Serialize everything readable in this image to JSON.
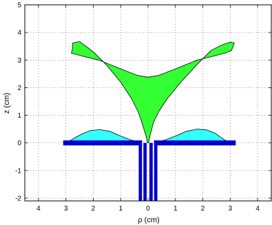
{
  "chart_data": {
    "type": "area",
    "title": "",
    "xlabel": "ρ (cm)",
    "ylabel": "z (cm)",
    "xlim": [
      -4.5,
      4.5
    ],
    "ylim": [
      -2.1,
      5
    ],
    "grid": true,
    "x_tick_values": [
      -4,
      -3,
      -2,
      -1,
      0,
      1,
      2,
      3,
      4
    ],
    "x_tick_labels": [
      "4",
      "3",
      "2",
      "1",
      "0",
      "1",
      "2",
      "3",
      "4"
    ],
    "y_tick_values": [
      -2,
      -1,
      0,
      1,
      2,
      3,
      4,
      5
    ],
    "y_tick_labels": [
      "-2",
      "-1",
      "0",
      "1",
      "2",
      "3",
      "4",
      "5"
    ],
    "colors": {
      "plume": "#33ff33",
      "pool": "#33ffff",
      "nozzle": "#0000cc",
      "outline": "#000000"
    },
    "shapes": [
      {
        "name": "plume",
        "points": [
          [
            0.02,
            0.0
          ],
          [
            0.08,
            0.3
          ],
          [
            0.2,
            0.75
          ],
          [
            0.4,
            1.15
          ],
          [
            0.7,
            1.6
          ],
          [
            1.2,
            2.2
          ],
          [
            1.8,
            2.85
          ],
          [
            2.3,
            3.35
          ],
          [
            2.7,
            3.55
          ],
          [
            3.0,
            3.65
          ],
          [
            3.15,
            3.62
          ],
          [
            3.05,
            3.35
          ],
          [
            2.8,
            3.25
          ],
          [
            2.3,
            3.12
          ],
          [
            1.8,
            3.0
          ],
          [
            1.3,
            2.8
          ],
          [
            0.8,
            2.6
          ],
          [
            0.4,
            2.45
          ],
          [
            0.0,
            2.38
          ],
          [
            -0.4,
            2.45
          ],
          [
            -0.8,
            2.6
          ],
          [
            -1.3,
            2.8
          ],
          [
            -1.8,
            3.0
          ],
          [
            -2.3,
            3.12
          ],
          [
            -2.8,
            3.25
          ],
          [
            -2.75,
            3.45
          ],
          [
            -2.75,
            3.62
          ],
          [
            -2.5,
            3.67
          ],
          [
            -2.0,
            3.3
          ],
          [
            -1.5,
            2.8
          ],
          [
            -1.0,
            2.2
          ],
          [
            -0.6,
            1.6
          ],
          [
            -0.35,
            1.1
          ],
          [
            -0.18,
            0.6
          ],
          [
            -0.06,
            0.2
          ],
          [
            -0.02,
            0.0
          ]
        ]
      },
      {
        "name": "pool-right",
        "points": [
          [
            0.3,
            0.03
          ],
          [
            0.6,
            0.1
          ],
          [
            1.0,
            0.25
          ],
          [
            1.4,
            0.42
          ],
          [
            1.8,
            0.5
          ],
          [
            2.15,
            0.47
          ],
          [
            2.45,
            0.35
          ],
          [
            2.7,
            0.17
          ],
          [
            2.9,
            0.05
          ],
          [
            3.0,
            0.03
          ]
        ]
      },
      {
        "name": "pool-left",
        "points": [
          [
            -0.3,
            0.03
          ],
          [
            -0.6,
            0.1
          ],
          [
            -1.0,
            0.25
          ],
          [
            -1.4,
            0.42
          ],
          [
            -1.75,
            0.48
          ],
          [
            -2.1,
            0.45
          ],
          [
            -2.4,
            0.33
          ],
          [
            -2.7,
            0.17
          ],
          [
            -2.9,
            0.05
          ],
          [
            -3.0,
            0.03
          ]
        ]
      }
    ],
    "nozzle": {
      "plate_extent": [
        -3.1,
        3.2
      ],
      "plate_thickness": 0.09,
      "wall_offsets": [
        0.28,
        0.11
      ],
      "wall_bottom": -2.1,
      "wall_width": 0.12
    }
  }
}
